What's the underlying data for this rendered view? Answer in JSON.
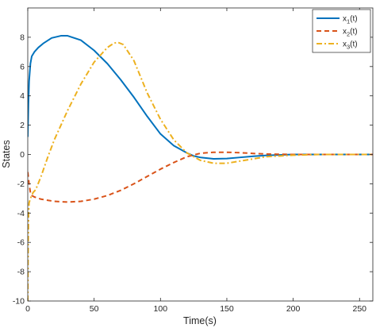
{
  "chart_data": {
    "type": "line",
    "xlabel": "Time(s)",
    "ylabel": "States",
    "xlim": [
      0,
      260
    ],
    "ylim": [
      -10,
      10
    ],
    "x_ticks": [
      0,
      50,
      100,
      150,
      200,
      250
    ],
    "y_ticks": [
      -10,
      -8,
      -6,
      -4,
      -2,
      0,
      2,
      4,
      6,
      8
    ],
    "grid": false,
    "legend_position": "top-right",
    "series": [
      {
        "name": "x1(t)",
        "legend_main": "x",
        "legend_sub": "1",
        "legend_tail": "(t)",
        "color": "#0072BD",
        "dash": "solid",
        "x": [
          0,
          0.5,
          1,
          2,
          3,
          5,
          8,
          12,
          18,
          25,
          30,
          40,
          50,
          60,
          70,
          80,
          90,
          100,
          110,
          120,
          125,
          130,
          140,
          150,
          160,
          170,
          180,
          200,
          220,
          240,
          260
        ],
        "y": [
          1.2,
          3.5,
          5.0,
          6.2,
          6.7,
          7.0,
          7.3,
          7.6,
          7.95,
          8.1,
          8.1,
          7.8,
          7.1,
          6.2,
          5.1,
          3.9,
          2.6,
          1.4,
          0.6,
          0.1,
          -0.1,
          -0.2,
          -0.3,
          -0.28,
          -0.2,
          -0.12,
          -0.06,
          0.0,
          0.0,
          0.0,
          0.0
        ]
      },
      {
        "name": "x2(t)",
        "legend_main": "x",
        "legend_sub": "2",
        "legend_tail": "(t)",
        "color": "#D95319",
        "dash": "dashed",
        "x": [
          0,
          1,
          2,
          3,
          5,
          10,
          20,
          30,
          40,
          50,
          60,
          70,
          80,
          90,
          100,
          110,
          120,
          130,
          140,
          150,
          160,
          170,
          180,
          200,
          220,
          240,
          260
        ],
        "y": [
          -1.2,
          -2.0,
          -2.6,
          -2.8,
          -2.9,
          -3.05,
          -3.2,
          -3.25,
          -3.2,
          -3.05,
          -2.8,
          -2.45,
          -2.0,
          -1.5,
          -1.0,
          -0.55,
          -0.15,
          0.08,
          0.15,
          0.15,
          0.12,
          0.07,
          0.03,
          0.0,
          0.0,
          0.0,
          0.0
        ]
      },
      {
        "name": "x3(t)",
        "legend_main": "x",
        "legend_sub": "3",
        "legend_tail": "(t)",
        "color": "#EDB120",
        "dash": "dashdot",
        "x": [
          0,
          0.3,
          0.6,
          1,
          2,
          3,
          4,
          6,
          10,
          15,
          20,
          30,
          40,
          50,
          60,
          65,
          68,
          72,
          80,
          90,
          100,
          110,
          120,
          130,
          140,
          150,
          160,
          170,
          180,
          200,
          220,
          240,
          260
        ],
        "y": [
          -10,
          -6,
          -4,
          -3.3,
          -3.0,
          -2.8,
          -2.6,
          -2.4,
          -1.5,
          -0.2,
          1.0,
          3.0,
          4.8,
          6.3,
          7.3,
          7.6,
          7.65,
          7.5,
          6.4,
          4.2,
          2.4,
          1.0,
          0.1,
          -0.4,
          -0.6,
          -0.6,
          -0.45,
          -0.3,
          -0.15,
          -0.05,
          0.0,
          0.0,
          0.0
        ]
      }
    ]
  }
}
